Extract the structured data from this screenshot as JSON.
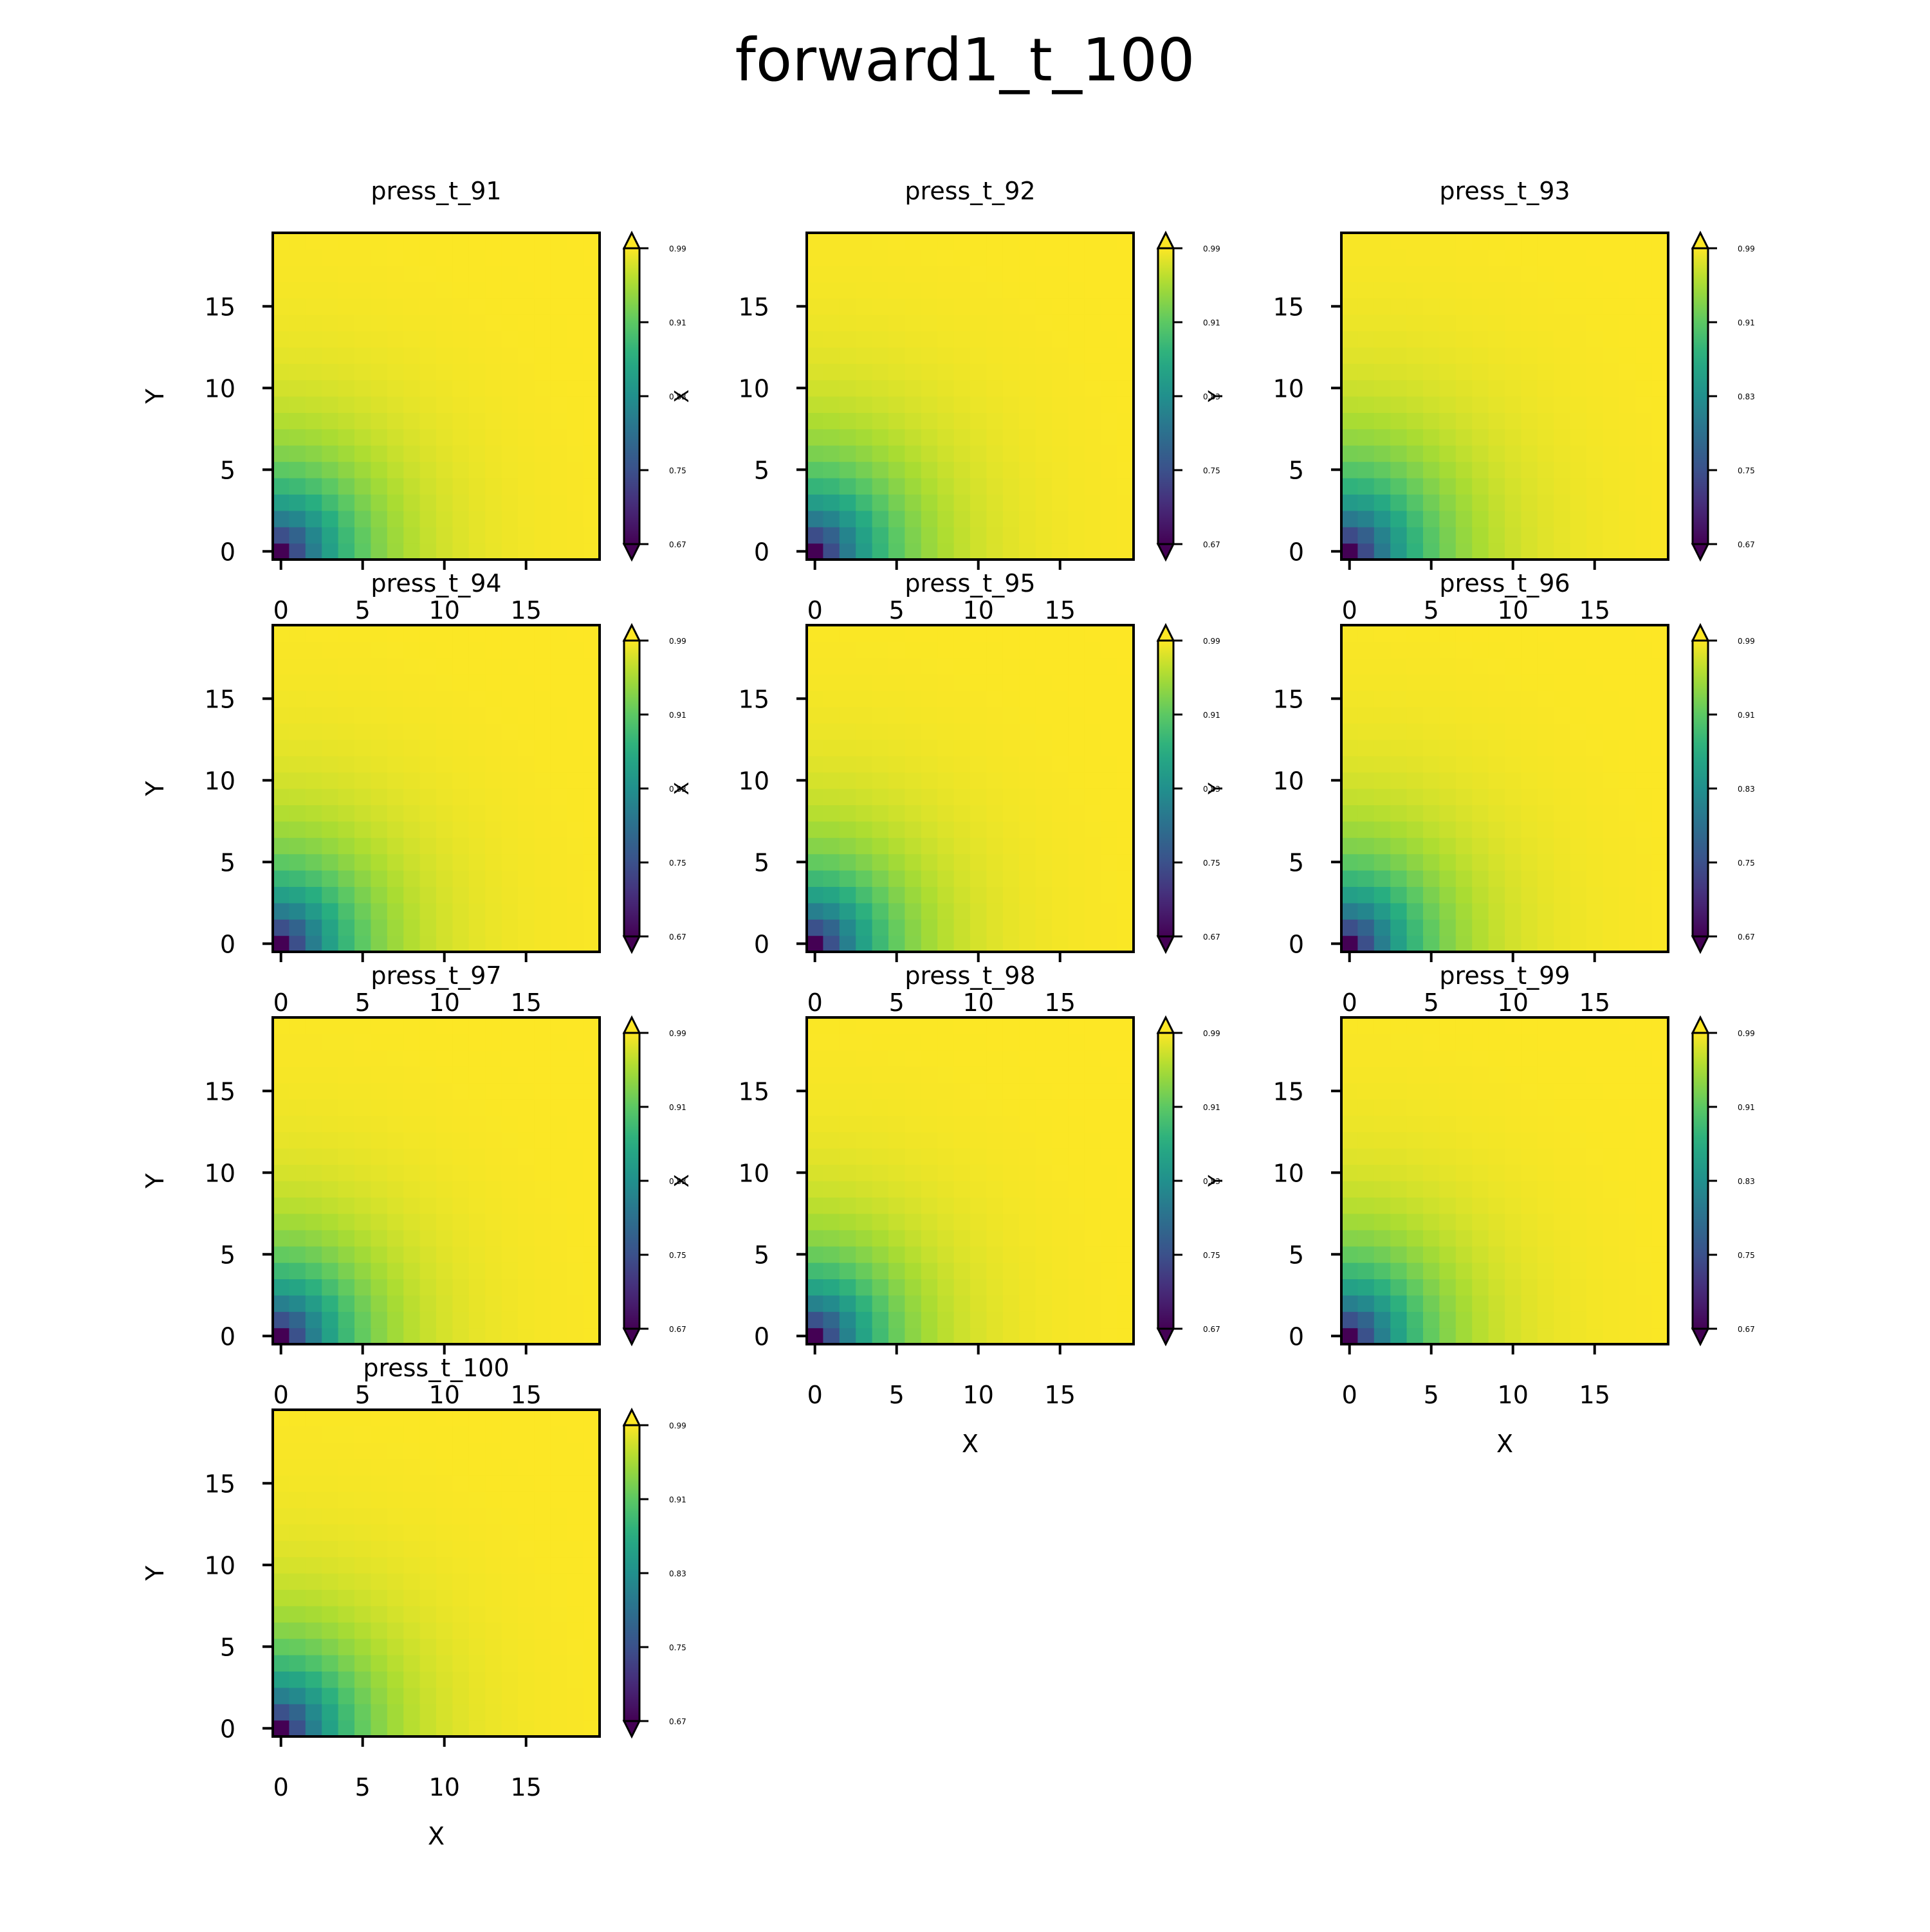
{
  "figure": {
    "title": "forward1_t_100"
  },
  "chart_data": {
    "type": "heatmap",
    "colormap": "viridis",
    "grid": false,
    "grid_size": [
      20,
      20
    ],
    "field_model": "value(x,y) = vmax - (vmax - vmin) * exp(-sqrt(x^2 + y^2) / decay); minimum at the origin cell (0,0), increasing toward the upper right",
    "panels": [
      {
        "title": "press_t_91",
        "xlabel": "",
        "ylabel": "Y",
        "xticks": [
          "0",
          "5",
          "10",
          "15"
        ],
        "yticks": [
          "0",
          "5",
          "10",
          "15"
        ],
        "xlim": [
          0,
          19
        ],
        "ylim": [
          0,
          19
        ],
        "colorbar": {
          "ticks": [
            "0.67",
            "0.75",
            "0.83",
            "0.91",
            "0.99"
          ],
          "extend": "both",
          "label": "X"
        },
        "vmin": 0.67,
        "vmax": 0.99,
        "decay": 3.6
      },
      {
        "title": "press_t_92",
        "xlabel": "",
        "ylabel": "",
        "xticks": [
          "0",
          "5",
          "10",
          "15"
        ],
        "yticks": [
          "0",
          "5",
          "10",
          "15"
        ],
        "xlim": [
          0,
          19
        ],
        "ylim": [
          0,
          19
        ],
        "colorbar": {
          "ticks": [
            "0.67",
            "0.75",
            "0.83",
            "0.91",
            "0.99"
          ],
          "extend": "both",
          "label": "Y"
        },
        "vmin": 0.67,
        "vmax": 0.99,
        "decay": 3.7
      },
      {
        "title": "press_t_93",
        "xlabel": "",
        "ylabel": "",
        "xticks": [
          "0",
          "5",
          "10",
          "15"
        ],
        "yticks": [
          "0",
          "5",
          "10",
          "15"
        ],
        "xlim": [
          0,
          19
        ],
        "ylim": [
          0,
          19
        ],
        "colorbar": {
          "ticks": [
            "0.67",
            "0.75",
            "0.83",
            "0.91",
            "0.99"
          ],
          "extend": "both",
          "label": ""
        },
        "vmin": 0.67,
        "vmax": 0.99,
        "decay": 3.8
      },
      {
        "title": "press_t_94",
        "xlabel": "",
        "ylabel": "Y",
        "xticks": [
          "0",
          "5",
          "10",
          "15"
        ],
        "yticks": [
          "0",
          "5",
          "10",
          "15"
        ],
        "xlim": [
          0,
          19
        ],
        "ylim": [
          0,
          19
        ],
        "colorbar": {
          "ticks": [
            "0.67",
            "0.75",
            "0.83",
            "0.91",
            "0.99"
          ],
          "extend": "both",
          "label": "X"
        },
        "vmin": 0.67,
        "vmax": 0.99,
        "decay": 3.6
      },
      {
        "title": "press_t_95",
        "xlabel": "",
        "ylabel": "",
        "xticks": [
          "0",
          "5",
          "10",
          "15"
        ],
        "yticks": [
          "0",
          "5",
          "10",
          "15"
        ],
        "xlim": [
          0,
          19
        ],
        "ylim": [
          0,
          19
        ],
        "colorbar": {
          "ticks": [
            "0.67",
            "0.75",
            "0.83",
            "0.91",
            "0.99"
          ],
          "extend": "both",
          "label": "Y"
        },
        "vmin": 0.67,
        "vmax": 0.99,
        "decay": 3.5
      },
      {
        "title": "press_t_96",
        "xlabel": "",
        "ylabel": "",
        "xticks": [
          "0",
          "5",
          "10",
          "15"
        ],
        "yticks": [
          "0",
          "5",
          "10",
          "15"
        ],
        "xlim": [
          0,
          19
        ],
        "ylim": [
          0,
          19
        ],
        "colorbar": {
          "ticks": [
            "0.67",
            "0.75",
            "0.83",
            "0.91",
            "0.99"
          ],
          "extend": "both",
          "label": ""
        },
        "vmin": 0.67,
        "vmax": 0.99,
        "decay": 3.6
      },
      {
        "title": "press_t_97",
        "xlabel": "",
        "ylabel": "Y",
        "xticks": [
          "0",
          "5",
          "10",
          "15"
        ],
        "yticks": [
          "0",
          "5",
          "10",
          "15"
        ],
        "xlim": [
          0,
          19
        ],
        "ylim": [
          0,
          19
        ],
        "colorbar": {
          "ticks": [
            "0.67",
            "0.75",
            "0.83",
            "0.91",
            "0.99"
          ],
          "extend": "both",
          "label": "X"
        },
        "vmin": 0.67,
        "vmax": 0.99,
        "decay": 3.5
      },
      {
        "title": "press_t_98",
        "xlabel": "X",
        "ylabel": "",
        "xticks": [
          "0",
          "5",
          "10",
          "15"
        ],
        "yticks": [
          "0",
          "5",
          "10",
          "15"
        ],
        "xlim": [
          0,
          19
        ],
        "ylim": [
          0,
          19
        ],
        "colorbar": {
          "ticks": [
            "0.67",
            "0.75",
            "0.83",
            "0.91",
            "0.99"
          ],
          "extend": "both",
          "label": "Y"
        },
        "vmin": 0.67,
        "vmax": 0.99,
        "decay": 3.4
      },
      {
        "title": "press_t_99",
        "xlabel": "X",
        "ylabel": "",
        "xticks": [
          "0",
          "5",
          "10",
          "15"
        ],
        "yticks": [
          "0",
          "5",
          "10",
          "15"
        ],
        "xlim": [
          0,
          19
        ],
        "ylim": [
          0,
          19
        ],
        "colorbar": {
          "ticks": [
            "0.67",
            "0.75",
            "0.83",
            "0.91",
            "0.99"
          ],
          "extend": "both",
          "label": ""
        },
        "vmin": 0.67,
        "vmax": 0.99,
        "decay": 3.5
      },
      {
        "title": "press_t_100",
        "xlabel": "X",
        "ylabel": "Y",
        "xticks": [
          "0",
          "5",
          "10",
          "15"
        ],
        "yticks": [
          "0",
          "5",
          "10",
          "15"
        ],
        "xlim": [
          0,
          19
        ],
        "ylim": [
          0,
          19
        ],
        "colorbar": {
          "ticks": [
            "0.67",
            "0.75",
            "0.83",
            "0.91",
            "0.99"
          ],
          "extend": "both",
          "label": ""
        },
        "vmin": 0.67,
        "vmax": 0.99,
        "decay": 3.5
      }
    ]
  }
}
